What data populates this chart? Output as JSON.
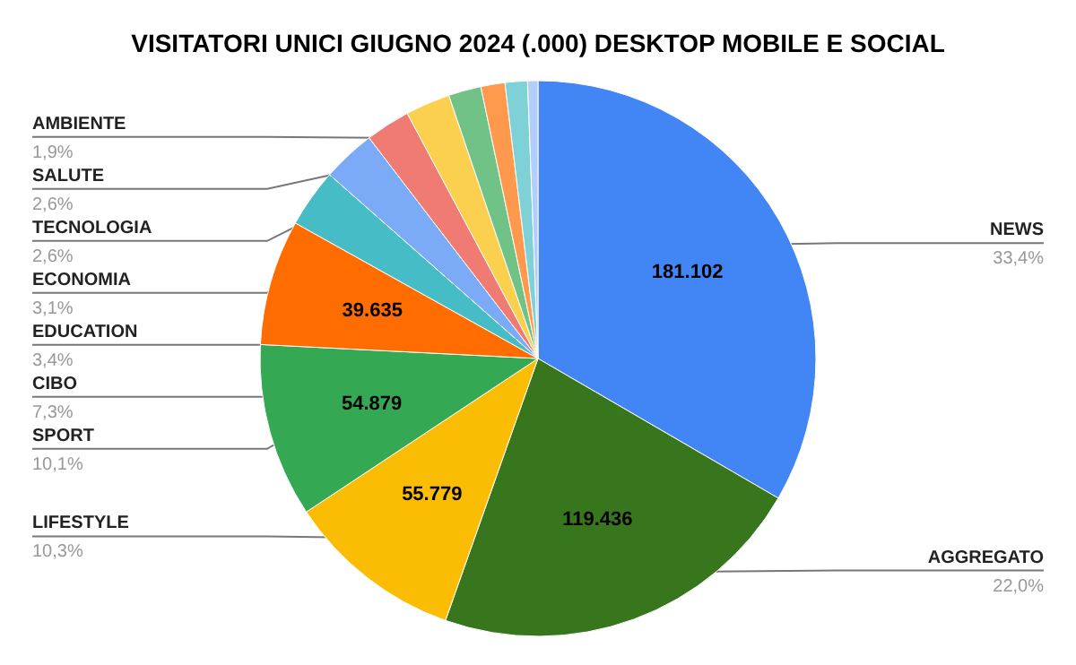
{
  "chart_data": {
    "type": "pie",
    "title": "VISITATORI UNICI GIUGNO 2024 (.000) DESKTOP MOBILE E SOCIAL",
    "categories": [
      "NEWS",
      "AGGREGATO",
      "LIFESTYLE",
      "SPORT",
      "CIBO",
      "EDUCATION",
      "ECONOMIA",
      "TECNOLOGIA",
      "SALUTE",
      "AMBIENTE",
      null,
      null,
      null
    ],
    "values": [
      181102,
      119436,
      55779,
      54879,
      39635,
      18436,
      16809,
      14098,
      14098,
      10302,
      7591,
      7049,
      3253
    ],
    "value_labels": [
      "181.102",
      "119.436",
      "55.779",
      "54.879",
      "39.635",
      null,
      null,
      null,
      null,
      null,
      null,
      null,
      null
    ],
    "annotations": [
      {
        "text": "33,4%",
        "x": "NEWS"
      },
      {
        "text": "22,0%",
        "x": "AGGREGATO"
      },
      {
        "text": "10,3%",
        "x": "LIFESTYLE"
      },
      {
        "text": "10,1%",
        "x": "SPORT"
      },
      {
        "text": "7,3%",
        "x": "CIBO"
      },
      {
        "text": "3,4%",
        "x": "EDUCATION"
      },
      {
        "text": "3,1%",
        "x": "ECONOMIA"
      },
      {
        "text": "2,6%",
        "x": "TECNOLOGIA"
      },
      {
        "text": "2,6%",
        "x": "SALUTE"
      },
      {
        "text": "1,9%",
        "x": "AMBIENTE"
      }
    ],
    "colors": [
      "#4285f4",
      "#38761d",
      "#fbbc04",
      "#34a853",
      "#ff6d01",
      "#46bdc6",
      "#7baaf7",
      "#f07b72",
      "#fcd04f",
      "#71c287",
      "#ff994d",
      "#7ed1d7",
      "#b3cefb"
    ],
    "legend": false
  }
}
